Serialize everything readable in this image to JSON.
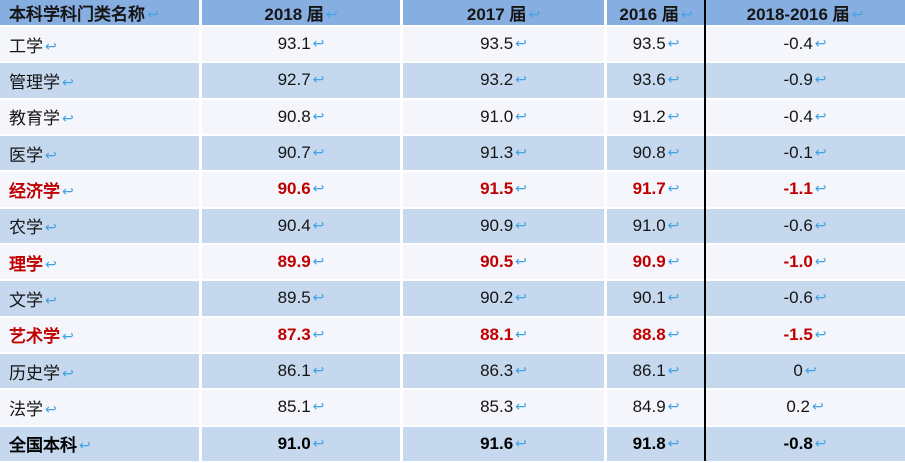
{
  "table": {
    "line_break_mark": "↩",
    "columns": [
      "本科学科门类名称",
      "2018 届",
      "2017 届",
      "2016 届",
      "2018-2016 届"
    ],
    "rows": [
      {
        "name": "工学",
        "values": [
          "93.1",
          "93.5",
          "93.5",
          "-0.4"
        ]
      },
      {
        "name": "管理学",
        "values": [
          "92.7",
          "93.2",
          "93.6",
          "-0.9"
        ]
      },
      {
        "name": "教育学",
        "values": [
          "90.8",
          "91.0",
          "91.2",
          "-0.4"
        ]
      },
      {
        "name": "医学",
        "values": [
          "90.7",
          "91.3",
          "90.8",
          "-0.1"
        ]
      },
      {
        "name": "经济学",
        "values": [
          "90.6",
          "91.5",
          "91.7",
          "-1.1"
        ]
      },
      {
        "name": "农学",
        "values": [
          "90.4",
          "90.9",
          "91.0",
          "-0.6"
        ]
      },
      {
        "name": "理学",
        "values": [
          "89.9",
          "90.5",
          "90.9",
          "-1.0"
        ]
      },
      {
        "name": "文学",
        "values": [
          "89.5",
          "90.2",
          "90.1",
          "-0.6"
        ]
      },
      {
        "name": "艺术学",
        "values": [
          "87.3",
          "88.1",
          "88.8",
          "-1.5"
        ]
      },
      {
        "name": "历史学",
        "values": [
          "86.1",
          "86.3",
          "86.1",
          "0"
        ]
      },
      {
        "name": "法学",
        "values": [
          "85.1",
          "85.3",
          "84.9",
          "0.2"
        ]
      },
      {
        "name": "全国本科",
        "values": [
          "91.0",
          "91.6",
          "91.8",
          "-0.8"
        ]
      }
    ],
    "colors": {
      "header_bg": "#87AEE0",
      "band_bg": "#C5D8EE",
      "light_bg": "#F4F6FB",
      "highlight_red": "#C00000",
      "mark_blue": "#41A3E6",
      "divider_black": "#000000"
    }
  }
}
